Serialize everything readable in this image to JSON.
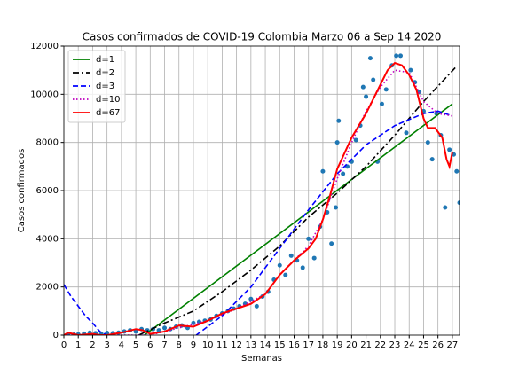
{
  "chart_data": {
    "type": "line",
    "title": "Casos confirmados de COVID-19 Colombia Marzo 06 a Sep 14 2020",
    "xlabel": "Semanas",
    "ylabel": "Casos confirmados",
    "xlim": [
      0,
      27.5
    ],
    "ylim": [
      0,
      12000
    ],
    "xticks": [
      0,
      1,
      2,
      3,
      4,
      5,
      6,
      7,
      8,
      9,
      10,
      11,
      12,
      13,
      14,
      15,
      16,
      17,
      18,
      19,
      20,
      21,
      22,
      23,
      24,
      25,
      26,
      27
    ],
    "yticks": [
      0,
      2000,
      4000,
      6000,
      8000,
      10000,
      12000
    ],
    "grid": true,
    "legend": "upper left",
    "series": [
      {
        "color": "#1f77b4",
        "style": "marker",
        "x": [
          0.3,
          0.7,
          1.0,
          1.4,
          1.8,
          2.2,
          2.6,
          3.0,
          3.4,
          3.8,
          4.2,
          4.6,
          5.0,
          5.4,
          5.8,
          6.2,
          6.6,
          7.0,
          7.4,
          7.8,
          8.2,
          8.6,
          9.0,
          9.4,
          9.8,
          10.2,
          10.6,
          11.0,
          11.4,
          11.8,
          12.2,
          12.6,
          13.0,
          13.4,
          13.8,
          14.2,
          14.6,
          15.0,
          15.4,
          15.8,
          16.2,
          16.6,
          17.0,
          17.4,
          17.8,
          18.0,
          18.3,
          18.6,
          18.9,
          19.0,
          19.1,
          19.4,
          19.7,
          20.0,
          20.3,
          20.6,
          20.8,
          21.0,
          21.3,
          21.5,
          21.8,
          22.1,
          22.4,
          22.8,
          23.1,
          23.4,
          23.8,
          24.1,
          24.4,
          24.7,
          25.0,
          25.3,
          25.6,
          25.9,
          26.2,
          26.5,
          26.8,
          27.1,
          27.3,
          27.5
        ],
        "values": [
          50,
          20,
          30,
          60,
          100,
          80,
          50,
          90,
          80,
          100,
          150,
          200,
          150,
          250,
          200,
          250,
          200,
          300,
          250,
          350,
          400,
          300,
          500,
          550,
          600,
          650,
          800,
          900,
          1000,
          1100,
          1200,
          1300,
          1500,
          1200,
          1600,
          1800,
          2300,
          2900,
          2500,
          3300,
          3100,
          2800,
          4000,
          3200,
          4500,
          6800,
          5100,
          3800,
          5300,
          8000,
          8900,
          6700,
          7000,
          7200,
          8100,
          8700,
          10300,
          9900,
          11500,
          10600,
          7200,
          9600,
          10200,
          11200,
          11600,
          11600,
          8400,
          11000,
          10500,
          10100,
          9300,
          8000,
          7300,
          9200,
          8300,
          5300,
          7700,
          7500,
          6800,
          5500
        ]
      },
      {
        "name": "d=1",
        "color": "#008000",
        "style": "-",
        "x": [
          5.6,
          27
        ],
        "values": [
          0,
          9600
        ]
      },
      {
        "name": "d=2",
        "color": "#000000",
        "style": "-.",
        "x": [
          5.2,
          7,
          9,
          11,
          13,
          15,
          17,
          19,
          21,
          23,
          25,
          27.2
        ],
        "values": [
          0,
          500,
          1000,
          1800,
          2700,
          3700,
          4900,
          5900,
          7000,
          8300,
          9700,
          11100
        ]
      },
      {
        "name": "d=3",
        "color": "#0000ff",
        "style": "--",
        "x": [
          0,
          0.5,
          1,
          1.5,
          2,
          2.5,
          3,
          4,
          9.2,
          11,
          13,
          15,
          17,
          19,
          21,
          23,
          25,
          26,
          27
        ],
        "values": [
          2100,
          1600,
          1200,
          800,
          500,
          150,
          0,
          null,
          0,
          800,
          2000,
          3600,
          5200,
          6700,
          7900,
          8700,
          9200,
          9300,
          9100
        ]
      },
      {
        "name": "d=10",
        "color": "#bf00bf",
        "style": ":",
        "x": [
          0,
          3,
          6,
          8,
          10,
          12,
          14,
          15,
          16,
          17,
          18,
          19,
          20,
          21,
          22,
          23,
          24,
          25,
          26,
          27
        ],
        "values": [
          0,
          0,
          0,
          300,
          600,
          1100,
          1700,
          2500,
          3100,
          3700,
          4800,
          6500,
          8000,
          9300,
          10300,
          11000,
          10900,
          9700,
          9200,
          9100
        ]
      },
      {
        "name": "d=67",
        "color": "#ff0000",
        "style": "-",
        "x": [
          0,
          0.3,
          1,
          2,
          2.5,
          3,
          4,
          5,
          5.5,
          6,
          6.5,
          7,
          8,
          9,
          10,
          11,
          12,
          13,
          14,
          15,
          16,
          17,
          17.5,
          18,
          18.5,
          19,
          20,
          21,
          21.5,
          22,
          22.5,
          23,
          23.5,
          24,
          24.5,
          25,
          25.3,
          25.8,
          26.3,
          26.6,
          26.8,
          27
        ],
        "values": [
          0,
          100,
          0,
          50,
          0,
          0,
          100,
          250,
          200,
          50,
          100,
          150,
          400,
          350,
          600,
          900,
          1100,
          1300,
          1700,
          2500,
          3100,
          3600,
          4000,
          4800,
          5800,
          6900,
          8200,
          9200,
          9800,
          10400,
          11000,
          11300,
          11200,
          10800,
          10200,
          9000,
          8600,
          8600,
          8200,
          7300,
          7000,
          7600
        ]
      }
    ]
  }
}
